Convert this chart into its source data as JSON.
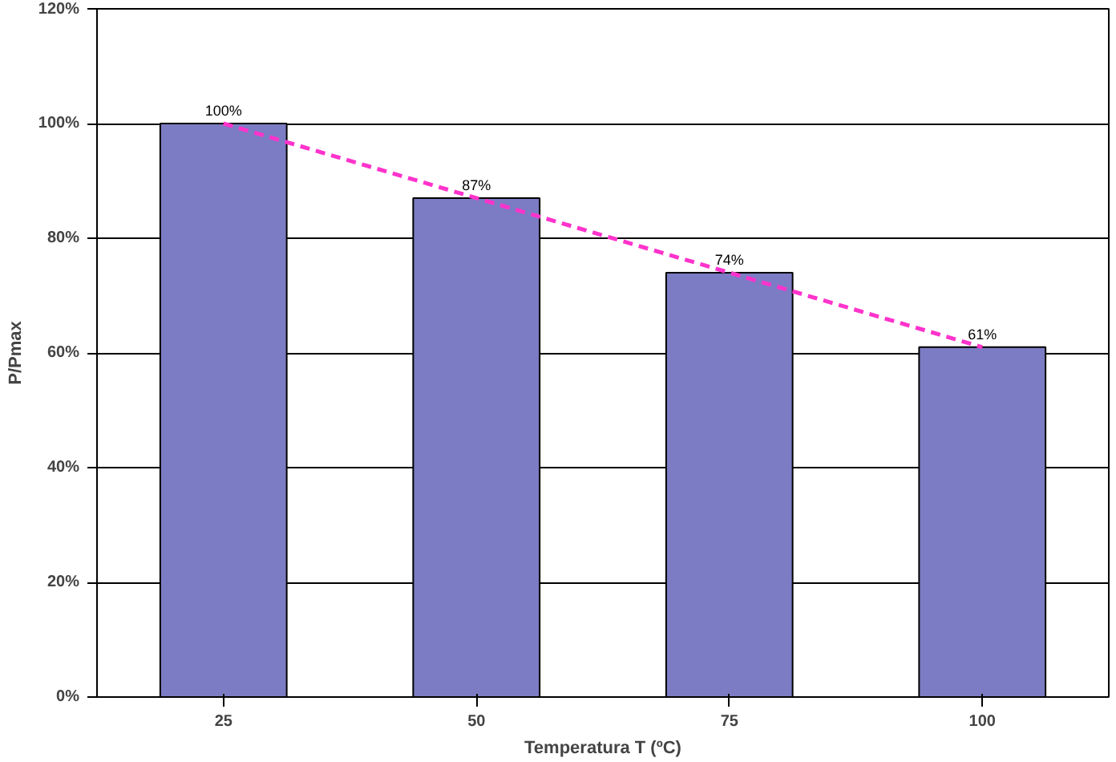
{
  "chart_data": {
    "type": "bar",
    "xlabel": "Temperatura T (ºC)",
    "ylabel": "P/Pmax",
    "categories": [
      "25",
      "50",
      "75",
      "100"
    ],
    "series": [
      {
        "color": "#7c7cc4",
        "values": [
          100,
          87,
          74,
          61
        ],
        "value_labels": [
          "100%",
          "87%",
          "74%",
          "61%"
        ]
      },
      {
        "type": "line",
        "color": "#ff33cc",
        "line_style": "dashed",
        "values": [
          100,
          87,
          74,
          61
        ]
      }
    ],
    "ylim": [
      0,
      120
    ],
    "yticks": [
      {
        "value": 0,
        "label": "0%"
      },
      {
        "value": 20,
        "label": "20%"
      },
      {
        "value": 40,
        "label": "40%"
      },
      {
        "value": 60,
        "label": "60%"
      },
      {
        "value": 80,
        "label": "80%"
      },
      {
        "value": 100,
        "label": "100%"
      },
      {
        "value": 120,
        "label": "120%"
      }
    ],
    "grid": "y"
  }
}
